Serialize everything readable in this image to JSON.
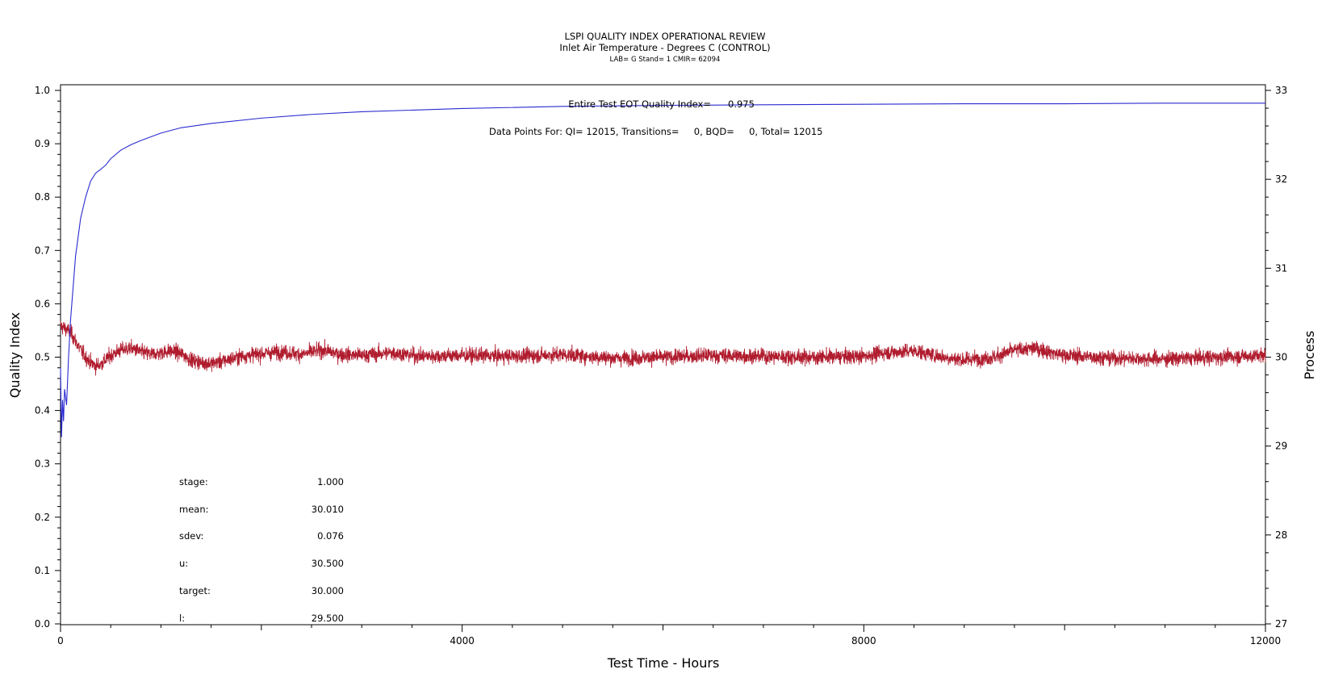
{
  "chart_data": {
    "type": "line",
    "title": "LSPI QUALITY INDEX OPERATIONAL REVIEW",
    "subtitle": "Inlet Air Temperature - Degrees C (CONTROL)",
    "subtitle2": "LAB= G Stand= 1 CMIR= 62094",
    "xlabel": "Test Time - Hours",
    "ylabel_left": "Quality Index",
    "ylabel_right": "Process",
    "xlim": [
      0,
      12000
    ],
    "ylim_left": [
      0.0,
      1.0
    ],
    "ylim_right": [
      27,
      33
    ],
    "x_ticks": [
      "0",
      "4000",
      "8000",
      "12000"
    ],
    "y_left_ticks": [
      "0.0",
      "0.1",
      "0.2",
      "0.3",
      "0.4",
      "0.5",
      "0.6",
      "0.7",
      "0.8",
      "0.9",
      "1.0"
    ],
    "y_right_ticks": [
      "27",
      "28",
      "29",
      "30",
      "31",
      "32",
      "33"
    ],
    "grid": false,
    "annotations": {
      "eot_label": "Entire Test EOT Quality Index=",
      "eot_value": "0.975",
      "points_text": "Data Points For: QI= 12015, Transitions=     0, BQD=     0, Total= 12015"
    },
    "stats": [
      {
        "label": "stage:",
        "value": "1.000"
      },
      {
        "label": "mean:",
        "value": "30.010"
      },
      {
        "label": "sdev:",
        "value": "0.076"
      },
      {
        "label": "u:",
        "value": "30.500"
      },
      {
        "label": "target:",
        "value": "30.000"
      },
      {
        "label": "l:",
        "value": "29.500"
      }
    ],
    "series": [
      {
        "axis": "left",
        "color": "#2a2ad0",
        "x": [
          0,
          10,
          20,
          30,
          40,
          60,
          80,
          100,
          150,
          200,
          250,
          300,
          350,
          400,
          450,
          500,
          600,
          700,
          800,
          1000,
          1200,
          1500,
          2000,
          2500,
          3000,
          4000,
          5000,
          6000,
          7000,
          8000,
          9000,
          10000,
          11000,
          12000
        ],
        "values": [
          0.48,
          0.35,
          0.42,
          0.38,
          0.44,
          0.41,
          0.5,
          0.57,
          0.69,
          0.76,
          0.8,
          0.83,
          0.845,
          0.852,
          0.86,
          0.872,
          0.888,
          0.898,
          0.906,
          0.92,
          0.93,
          0.938,
          0.948,
          0.955,
          0.96,
          0.966,
          0.97,
          0.972,
          0.973,
          0.974,
          0.975,
          0.975,
          0.976,
          0.976
        ]
      },
      {
        "axis": "right",
        "color": "#b01c2e",
        "x": [
          0,
          50,
          100,
          150,
          200,
          250,
          300,
          350,
          400,
          500,
          600,
          700,
          800,
          900,
          1000,
          1100,
          1200,
          1300,
          1400,
          1500,
          1600,
          1700,
          1800,
          2000,
          2200,
          2400,
          2600,
          2800,
          3000,
          3300,
          3600,
          4000,
          4500,
          5000,
          5500,
          6000,
          6500,
          7000,
          7500,
          8000,
          8200,
          8500,
          8800,
          9000,
          9300,
          9500,
          9700,
          10000,
          10500,
          11000,
          11500,
          12000
        ],
        "values": [
          30.35,
          30.32,
          30.28,
          30.18,
          30.08,
          30.0,
          29.94,
          29.9,
          29.92,
          30.02,
          30.08,
          30.1,
          30.06,
          30.03,
          30.05,
          30.07,
          30.04,
          29.97,
          29.94,
          29.93,
          29.95,
          29.98,
          30.01,
          30.04,
          30.06,
          30.03,
          30.08,
          30.03,
          30.02,
          30.05,
          30.01,
          30.02,
          30.01,
          30.03,
          29.99,
          30.0,
          30.02,
          30.01,
          30.0,
          30.01,
          30.05,
          30.07,
          30.0,
          29.97,
          30.0,
          30.08,
          30.1,
          30.02,
          29.99,
          29.98,
          30.0,
          30.02
        ],
        "noise_sdev": 0.076
      }
    ]
  }
}
